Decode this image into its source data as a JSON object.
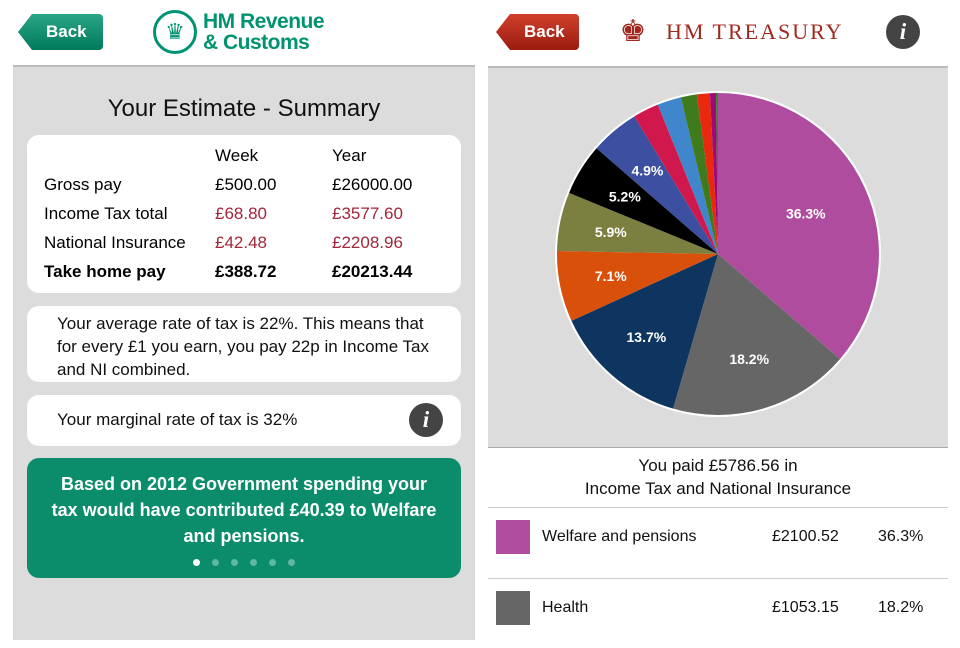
{
  "left": {
    "back_label": "Back",
    "logo_text": [
      "HM Revenue",
      "& Customs"
    ],
    "title": "Your Estimate - Summary",
    "columns": [
      "Week",
      "Year"
    ],
    "rows": [
      {
        "label": "Gross pay",
        "week": "£500.00",
        "year": "£26000.00",
        "style": "normal"
      },
      {
        "label": "Income Tax total",
        "week": "£68.80",
        "year": "£3577.60",
        "style": "red"
      },
      {
        "label": "National Insurance",
        "week": "£42.48",
        "year": "£2208.96",
        "style": "red"
      },
      {
        "label": "Take home pay",
        "week": "£388.72",
        "year": "£20213.44",
        "style": "bold"
      }
    ],
    "average_text": "Your average rate of tax is 22%. This means that for every £1 you earn, you pay 22p in Income Tax and NI combined.",
    "marginal_text": "Your marginal rate of tax is 32%",
    "info_label": "i",
    "spending_text": "Based on 2012 Government spending your tax would have contributed £40.39 to Welfare and pensions.",
    "page_dots": 6,
    "active_dot": 0
  },
  "right": {
    "back_label": "Back",
    "logo_text": "HM TREASURY",
    "info_label": "i",
    "paid_line1": "You paid £5786.56 in",
    "paid_line2": "Income Tax and National Insurance",
    "list": [
      {
        "name": "Welfare and pensions",
        "amount": "£2100.52",
        "pct": "36.3%",
        "color": "#b04c9e"
      },
      {
        "name": "Health",
        "amount": "£1053.15",
        "pct": "18.2%",
        "color": "#666666"
      }
    ]
  },
  "chart_data": {
    "type": "pie",
    "values": [
      36.3,
      18.2,
      13.7,
      7.1,
      5.9,
      5.2,
      4.9,
      2.6,
      2.4,
      1.6,
      1.3,
      0.6,
      0.2
    ],
    "labels": [
      "36.3%",
      "18.2%",
      "13.7%",
      "7.1%",
      "5.9%",
      "5.2%",
      "4.9%",
      "",
      "",
      "",
      "",
      "",
      ""
    ],
    "colors": [
      "#b04c9e",
      "#666666",
      "#0d3560",
      "#d9500a",
      "#7b8040",
      "#000000",
      "#3d4fa0",
      "#d0184c",
      "#3f86cc",
      "#3f7a1c",
      "#e8290e",
      "#a00878",
      "#2a8a30"
    ]
  }
}
